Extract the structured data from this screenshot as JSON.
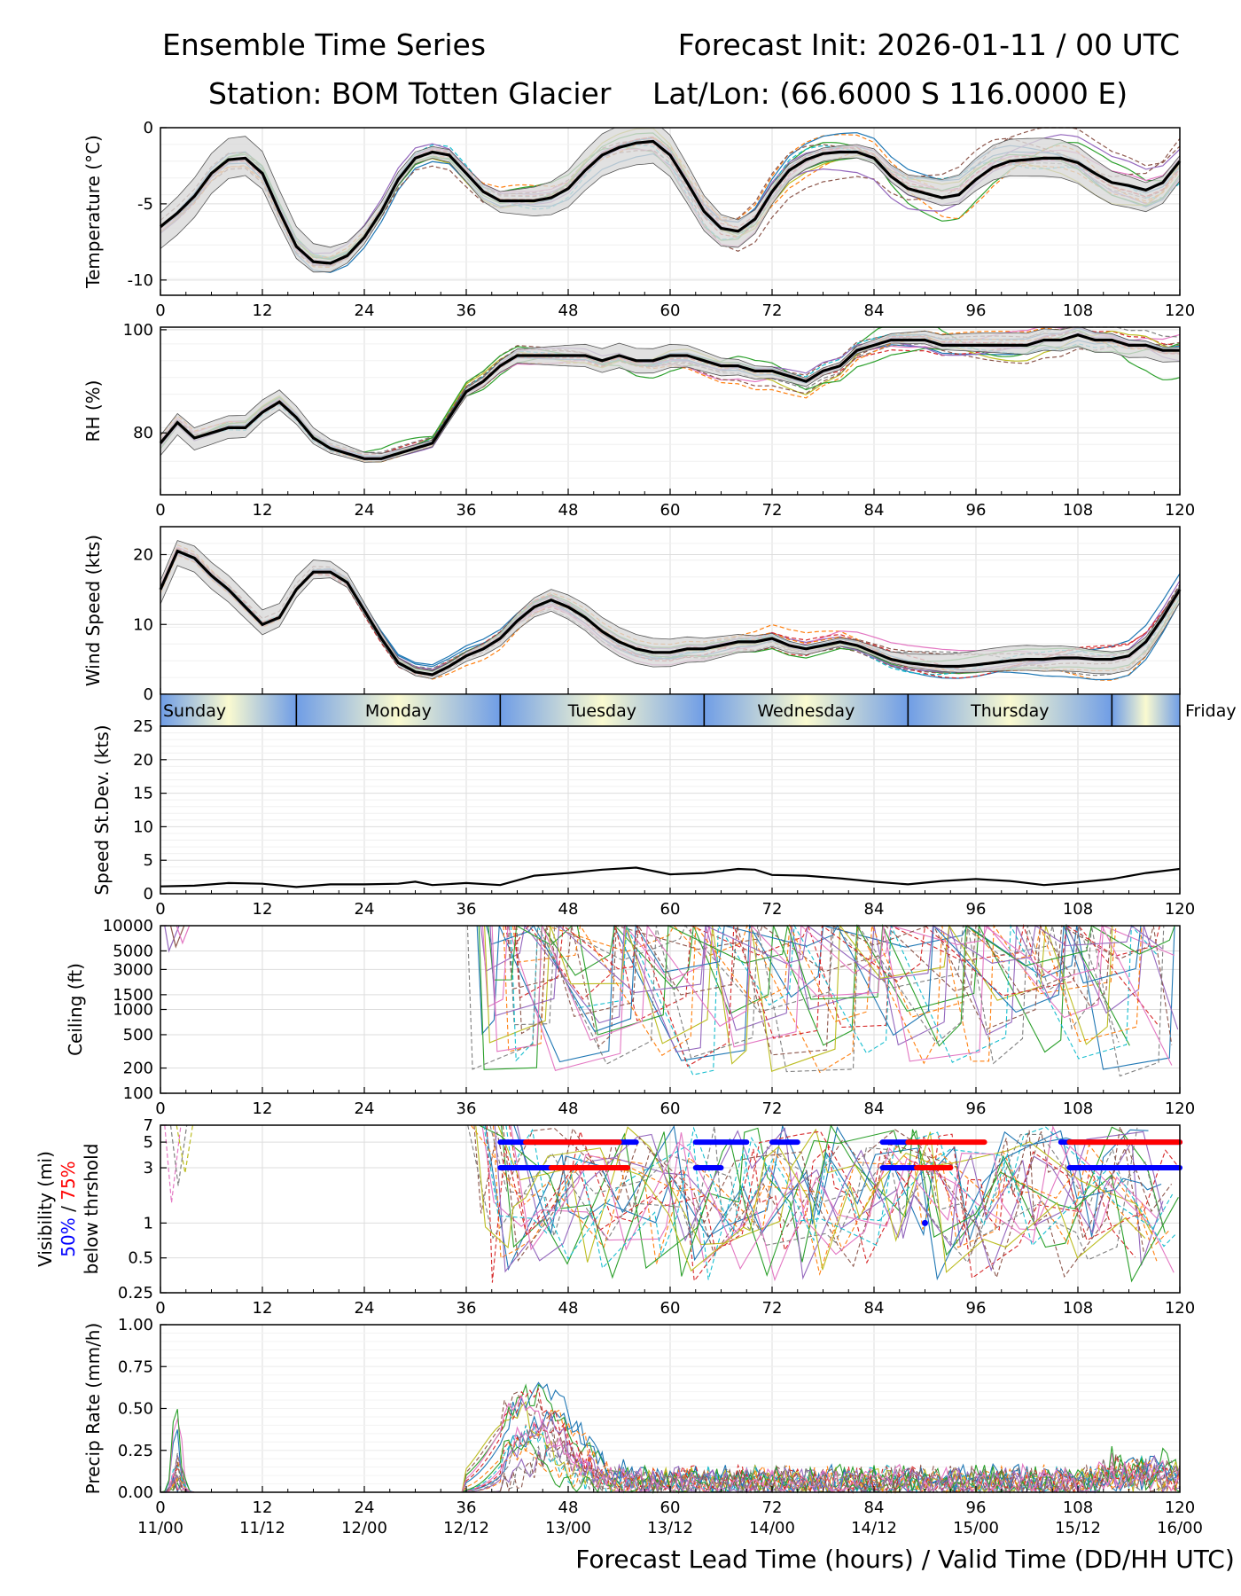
{
  "header": {
    "title_left": "Ensemble Time Series",
    "title_right": "Forecast Init: 2026-01-11 / 00 UTC",
    "station": "Station: BOM Totten Glacier",
    "latlon": "Lat/Lon: (66.6000 S 116.0000 E)"
  },
  "xaxis": {
    "label": "Forecast Lead Time (hours) / Valid Time (DD/HH UTC)",
    "ticks": [
      "0",
      "12",
      "24",
      "36",
      "48",
      "60",
      "72",
      "84",
      "96",
      "108",
      "120"
    ],
    "valid_times": [
      "11/00",
      "11/12",
      "12/00",
      "12/12",
      "13/00",
      "13/12",
      "14/00",
      "14/12",
      "15/00",
      "15/12",
      "16/00"
    ],
    "range": [
      0,
      120
    ]
  },
  "days": {
    "labels": [
      "Sunday",
      "Monday",
      "Tuesday",
      "Wednesday",
      "Thursday",
      "Friday"
    ],
    "boundaries_hours": [
      16,
      40,
      64,
      88,
      112
    ]
  },
  "colors": {
    "mean": "#000000",
    "spread": "#cccccc",
    "vis50": "#0000ff",
    "vis75": "#ff0000",
    "members": [
      "#1f77b4",
      "#ff7f0e",
      "#2ca02c",
      "#d62728",
      "#9467bd",
      "#8c564b",
      "#e377c2",
      "#7f7f7f",
      "#bcbd22",
      "#17becf"
    ]
  },
  "chart_data": [
    {
      "type": "line",
      "ylabel": "Temperature (°C)",
      "ylim": [
        -11,
        0
      ],
      "yticks": [
        "0",
        "-5",
        "-10"
      ],
      "x": [
        0,
        2,
        4,
        6,
        8,
        10,
        12,
        14,
        16,
        18,
        20,
        22,
        24,
        26,
        28,
        30,
        32,
        34,
        36,
        38,
        40,
        42,
        44,
        46,
        48,
        50,
        52,
        54,
        56,
        58,
        60,
        62,
        64,
        66,
        68,
        70,
        72,
        74,
        76,
        78,
        80,
        82,
        84,
        86,
        88,
        90,
        92,
        94,
        96,
        98,
        100,
        102,
        104,
        106,
        108,
        110,
        112,
        114,
        116,
        118,
        120
      ],
      "mean": [
        -6.5,
        -5.6,
        -4.5,
        -3.0,
        -2.1,
        -2.0,
        -3.0,
        -5.5,
        -7.8,
        -8.8,
        -8.9,
        -8.4,
        -7.2,
        -5.5,
        -3.4,
        -2.0,
        -1.6,
        -1.8,
        -3.0,
        -4.2,
        -4.8,
        -4.8,
        -4.8,
        -4.6,
        -4.0,
        -2.8,
        -1.8,
        -1.3,
        -1.0,
        -0.9,
        -1.8,
        -3.6,
        -5.5,
        -6.6,
        -6.8,
        -6.0,
        -4.2,
        -2.8,
        -2.1,
        -1.7,
        -1.6,
        -1.6,
        -2.0,
        -3.2,
        -4.0,
        -4.3,
        -4.6,
        -4.4,
        -3.4,
        -2.6,
        -2.2,
        -2.1,
        -2.0,
        -2.0,
        -2.3,
        -3.0,
        -3.6,
        -3.8,
        -4.1,
        -3.6,
        -2.2
      ],
      "spread": 0.9,
      "members": 16
    },
    {
      "type": "line",
      "ylabel": "RH (%)",
      "ylim": [
        68,
        100.5
      ],
      "yticks": [
        "100",
        "80"
      ],
      "x": [
        0,
        2,
        4,
        6,
        8,
        10,
        12,
        14,
        16,
        18,
        20,
        22,
        24,
        26,
        28,
        30,
        32,
        34,
        36,
        38,
        40,
        42,
        44,
        46,
        48,
        50,
        52,
        54,
        56,
        58,
        60,
        62,
        64,
        66,
        68,
        70,
        72,
        74,
        76,
        78,
        80,
        82,
        84,
        86,
        88,
        90,
        92,
        94,
        96,
        98,
        100,
        102,
        104,
        106,
        108,
        110,
        112,
        114,
        116,
        118,
        120
      ],
      "mean": [
        78,
        82,
        79,
        80,
        81,
        81,
        84,
        86,
        83,
        79,
        77,
        76,
        75,
        75,
        76,
        77,
        78,
        83,
        88,
        90,
        93,
        95,
        95,
        95,
        95,
        95,
        94,
        95,
        94,
        94,
        95,
        95,
        94,
        93,
        93,
        92,
        92,
        91,
        90,
        92,
        93,
        96,
        97,
        98,
        98,
        98,
        97,
        97,
        97,
        97,
        97,
        97,
        98,
        98,
        99,
        98,
        98,
        97,
        97,
        96,
        96
      ],
      "spread": 1.5,
      "members": 16
    },
    {
      "type": "line",
      "ylabel": "Wind Speed (kts)",
      "ylim": [
        0,
        24
      ],
      "yticks": [
        "20",
        "10",
        "0"
      ],
      "x": [
        0,
        2,
        4,
        6,
        8,
        10,
        12,
        14,
        16,
        18,
        20,
        22,
        24,
        26,
        28,
        30,
        32,
        34,
        36,
        38,
        40,
        42,
        44,
        46,
        48,
        50,
        52,
        54,
        56,
        58,
        60,
        62,
        64,
        66,
        68,
        70,
        72,
        74,
        76,
        78,
        80,
        82,
        84,
        86,
        88,
        90,
        92,
        94,
        96,
        98,
        100,
        102,
        104,
        106,
        108,
        110,
        112,
        114,
        116,
        118,
        120
      ],
      "mean": [
        15.0,
        20.5,
        19.5,
        17.0,
        15.0,
        12.5,
        10.0,
        11.0,
        15.0,
        17.5,
        17.5,
        16.0,
        12.0,
        8.0,
        4.5,
        3.2,
        2.8,
        4.0,
        5.5,
        6.5,
        8.0,
        10.5,
        12.5,
        13.5,
        12.5,
        11.0,
        9.0,
        7.5,
        6.5,
        6.0,
        6.0,
        6.5,
        6.5,
        7.0,
        7.5,
        7.5,
        8.0,
        7.0,
        6.5,
        7.0,
        7.5,
        7.0,
        6.0,
        5.0,
        4.5,
        4.2,
        4.0,
        4.0,
        4.2,
        4.5,
        4.8,
        5.0,
        5.0,
        5.2,
        5.2,
        5.0,
        5.0,
        5.5,
        7.5,
        11.0,
        15.0
      ],
      "spread": 1.3,
      "members": 16
    },
    {
      "type": "line",
      "ylabel": "Speed St.Dev. (kts)",
      "ylim": [
        0,
        25
      ],
      "yticks": [
        "25",
        "20",
        "15",
        "10",
        "5",
        "0"
      ],
      "x": [
        0,
        4,
        8,
        12,
        16,
        20,
        24,
        28,
        30,
        32,
        36,
        40,
        44,
        48,
        52,
        56,
        60,
        64,
        68,
        70,
        72,
        76,
        80,
        84,
        88,
        92,
        96,
        100,
        104,
        108,
        112,
        116,
        120
      ],
      "values": [
        1.1,
        1.2,
        1.6,
        1.5,
        1.0,
        1.4,
        1.4,
        1.5,
        1.8,
        1.3,
        1.6,
        1.3,
        2.7,
        3.1,
        3.6,
        3.9,
        2.9,
        3.1,
        3.7,
        3.6,
        2.8,
        2.7,
        2.3,
        1.8,
        1.4,
        1.9,
        2.2,
        1.9,
        1.3,
        1.7,
        2.2,
        3.1,
        3.7
      ]
    },
    {
      "type": "line",
      "ylabel": "Ceiling (ft)",
      "scale": "log",
      "ylim": [
        100,
        10000
      ],
      "yticks": [
        "10000",
        "5000",
        "3000",
        "1500",
        "1000",
        "500",
        "200",
        "100"
      ],
      "note": "member ceilings present mainly after hour 36; many members at or above 10000 ft"
    },
    {
      "type": "line",
      "ylabel_lines": [
        "Visibility (mi)",
        "50% / 75%",
        "below thrshold"
      ],
      "ylabel_pct50": "50%",
      "ylabel_sep": " / ",
      "ylabel_pct75": "75%",
      "scale": "log",
      "ylim": [
        0.25,
        7
      ],
      "yticks": [
        "7",
        "5",
        "3",
        "1",
        "0.5",
        "0.25"
      ],
      "threshold_bars": {
        "vis5_red": [
          [
            43,
            54
          ],
          [
            88,
            97
          ],
          [
            107,
            120
          ]
        ],
        "vis5_blue": [
          [
            40,
            56
          ],
          [
            63,
            69
          ],
          [
            72,
            75
          ],
          [
            85,
            88
          ],
          [
            106,
            120
          ]
        ],
        "vis3_red": [
          [
            46,
            55
          ],
          [
            89,
            93
          ]
        ],
        "vis3_blue": [
          [
            40,
            54
          ],
          [
            63,
            66
          ],
          [
            85,
            93
          ],
          [
            107,
            120
          ]
        ]
      }
    },
    {
      "type": "line",
      "ylabel": "Precip Rate (mm/h)",
      "ylim": [
        0,
        1
      ],
      "yticks": [
        "1.00",
        "0.75",
        "0.50",
        "0.25",
        "0.00"
      ],
      "note": "light precipitation after hour 36, peak ~0.55 mm/h near hour 43"
    }
  ]
}
